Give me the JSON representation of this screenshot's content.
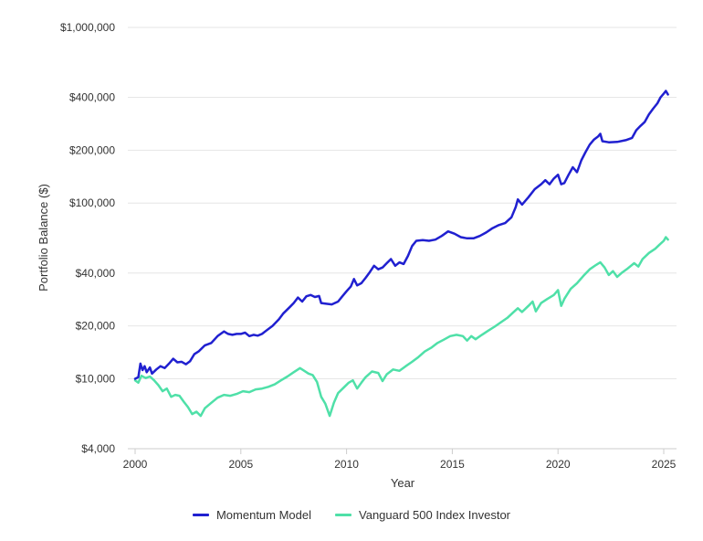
{
  "chart_data": {
    "type": "line",
    "xlabel": "Year",
    "ylabel": "Portfolio Balance ($)",
    "y_scale": "log",
    "ylim": [
      4000,
      1000000
    ],
    "xlim": [
      2000,
      2025.3
    ],
    "y_ticks": [
      {
        "value": 4000,
        "label": "$4,000"
      },
      {
        "value": 10000,
        "label": "$10,000"
      },
      {
        "value": 20000,
        "label": "$20,000"
      },
      {
        "value": 40000,
        "label": "$40,000"
      },
      {
        "value": 100000,
        "label": "$100,000"
      },
      {
        "value": 200000,
        "label": "$200,000"
      },
      {
        "value": 400000,
        "label": "$400,000"
      },
      {
        "value": 1000000,
        "label": "$1,000,000"
      }
    ],
    "x_ticks": [
      {
        "value": 2000,
        "label": "2000"
      },
      {
        "value": 2005,
        "label": "2005"
      },
      {
        "value": 2010,
        "label": "2010"
      },
      {
        "value": 2015,
        "label": "2015"
      },
      {
        "value": 2020,
        "label": "2020"
      },
      {
        "value": 2025,
        "label": "2025"
      }
    ],
    "grid": "horizontal",
    "legend_position": "bottom",
    "series": [
      {
        "name": "Momentum Model",
        "color": "#2020d0",
        "points": [
          [
            2000.0,
            10000
          ],
          [
            2000.15,
            10200
          ],
          [
            2000.25,
            12200
          ],
          [
            2000.35,
            11200
          ],
          [
            2000.45,
            11800
          ],
          [
            2000.55,
            10900
          ],
          [
            2000.7,
            11600
          ],
          [
            2000.8,
            10700
          ],
          [
            2001.0,
            11300
          ],
          [
            2001.2,
            11800
          ],
          [
            2001.4,
            11500
          ],
          [
            2001.6,
            12200
          ],
          [
            2001.8,
            13000
          ],
          [
            2002.0,
            12400
          ],
          [
            2002.2,
            12500
          ],
          [
            2002.4,
            12100
          ],
          [
            2002.6,
            12600
          ],
          [
            2002.8,
            13800
          ],
          [
            2003.0,
            14300
          ],
          [
            2003.3,
            15500
          ],
          [
            2003.6,
            16000
          ],
          [
            2003.9,
            17500
          ],
          [
            2004.2,
            18600
          ],
          [
            2004.4,
            18000
          ],
          [
            2004.6,
            17800
          ],
          [
            2004.8,
            18000
          ],
          [
            2005.0,
            18000
          ],
          [
            2005.2,
            18300
          ],
          [
            2005.4,
            17500
          ],
          [
            2005.6,
            17800
          ],
          [
            2005.8,
            17600
          ],
          [
            2006.0,
            18000
          ],
          [
            2006.2,
            18800
          ],
          [
            2006.5,
            20000
          ],
          [
            2006.8,
            21800
          ],
          [
            2007.0,
            23500
          ],
          [
            2007.3,
            25500
          ],
          [
            2007.5,
            27000
          ],
          [
            2007.7,
            29000
          ],
          [
            2007.9,
            27500
          ],
          [
            2008.1,
            29500
          ],
          [
            2008.3,
            30000
          ],
          [
            2008.5,
            29200
          ],
          [
            2008.7,
            29600
          ],
          [
            2008.8,
            27000
          ],
          [
            2009.0,
            26800
          ],
          [
            2009.3,
            26500
          ],
          [
            2009.6,
            27500
          ],
          [
            2009.8,
            29500
          ],
          [
            2010.0,
            31500
          ],
          [
            2010.2,
            33500
          ],
          [
            2010.35,
            37000
          ],
          [
            2010.5,
            34000
          ],
          [
            2010.7,
            35000
          ],
          [
            2010.9,
            37500
          ],
          [
            2011.1,
            40500
          ],
          [
            2011.3,
            44000
          ],
          [
            2011.5,
            42000
          ],
          [
            2011.7,
            43000
          ],
          [
            2011.9,
            45500
          ],
          [
            2012.1,
            48000
          ],
          [
            2012.3,
            44000
          ],
          [
            2012.5,
            46000
          ],
          [
            2012.7,
            45000
          ],
          [
            2012.9,
            50000
          ],
          [
            2013.1,
            57000
          ],
          [
            2013.3,
            61000
          ],
          [
            2013.6,
            61500
          ],
          [
            2013.9,
            61000
          ],
          [
            2014.2,
            62000
          ],
          [
            2014.5,
            65000
          ],
          [
            2014.8,
            69000
          ],
          [
            2015.1,
            67000
          ],
          [
            2015.4,
            64000
          ],
          [
            2015.7,
            63000
          ],
          [
            2016.0,
            63000
          ],
          [
            2016.3,
            65000
          ],
          [
            2016.6,
            68000
          ],
          [
            2016.9,
            72000
          ],
          [
            2017.2,
            75000
          ],
          [
            2017.5,
            77000
          ],
          [
            2017.8,
            83000
          ],
          [
            2018.0,
            95000
          ],
          [
            2018.1,
            105000
          ],
          [
            2018.3,
            98000
          ],
          [
            2018.6,
            108000
          ],
          [
            2018.9,
            120000
          ],
          [
            2019.2,
            128000
          ],
          [
            2019.4,
            135000
          ],
          [
            2019.6,
            128000
          ],
          [
            2019.8,
            138000
          ],
          [
            2020.0,
            145000
          ],
          [
            2020.15,
            128000
          ],
          [
            2020.3,
            130000
          ],
          [
            2020.5,
            145000
          ],
          [
            2020.7,
            160000
          ],
          [
            2020.9,
            150000
          ],
          [
            2021.1,
            175000
          ],
          [
            2021.3,
            195000
          ],
          [
            2021.5,
            215000
          ],
          [
            2021.7,
            230000
          ],
          [
            2021.9,
            240000
          ],
          [
            2022.0,
            248000
          ],
          [
            2022.1,
            225000
          ],
          [
            2022.4,
            222000
          ],
          [
            2022.8,
            223000
          ],
          [
            2023.2,
            228000
          ],
          [
            2023.5,
            235000
          ],
          [
            2023.7,
            260000
          ],
          [
            2023.9,
            275000
          ],
          [
            2024.1,
            290000
          ],
          [
            2024.3,
            320000
          ],
          [
            2024.5,
            345000
          ],
          [
            2024.7,
            370000
          ],
          [
            2024.85,
            400000
          ],
          [
            2025.0,
            420000
          ],
          [
            2025.1,
            435000
          ],
          [
            2025.2,
            415000
          ]
        ]
      },
      {
        "name": "Vanguard 500 Index Investor",
        "color": "#4fe0a8",
        "points": [
          [
            2000.0,
            9800
          ],
          [
            2000.15,
            9500
          ],
          [
            2000.3,
            10400
          ],
          [
            2000.5,
            10100
          ],
          [
            2000.7,
            10300
          ],
          [
            2000.9,
            9800
          ],
          [
            2001.1,
            9200
          ],
          [
            2001.3,
            8500
          ],
          [
            2001.5,
            8800
          ],
          [
            2001.7,
            7900
          ],
          [
            2001.9,
            8100
          ],
          [
            2002.1,
            8000
          ],
          [
            2002.3,
            7400
          ],
          [
            2002.5,
            6900
          ],
          [
            2002.7,
            6300
          ],
          [
            2002.9,
            6500
          ],
          [
            2003.1,
            6150
          ],
          [
            2003.3,
            6800
          ],
          [
            2003.6,
            7300
          ],
          [
            2003.9,
            7800
          ],
          [
            2004.2,
            8100
          ],
          [
            2004.5,
            8000
          ],
          [
            2004.8,
            8200
          ],
          [
            2005.1,
            8500
          ],
          [
            2005.4,
            8400
          ],
          [
            2005.7,
            8700
          ],
          [
            2006.0,
            8800
          ],
          [
            2006.3,
            9000
          ],
          [
            2006.6,
            9300
          ],
          [
            2006.9,
            9800
          ],
          [
            2007.2,
            10300
          ],
          [
            2007.5,
            10900
          ],
          [
            2007.8,
            11500
          ],
          [
            2008.0,
            11100
          ],
          [
            2008.2,
            10700
          ],
          [
            2008.4,
            10500
          ],
          [
            2008.6,
            9600
          ],
          [
            2008.8,
            7900
          ],
          [
            2009.0,
            7200
          ],
          [
            2009.2,
            6150
          ],
          [
            2009.4,
            7300
          ],
          [
            2009.6,
            8300
          ],
          [
            2009.9,
            9000
          ],
          [
            2010.1,
            9500
          ],
          [
            2010.3,
            9800
          ],
          [
            2010.5,
            8800
          ],
          [
            2010.7,
            9500
          ],
          [
            2010.9,
            10200
          ],
          [
            2011.2,
            11000
          ],
          [
            2011.5,
            10800
          ],
          [
            2011.7,
            9700
          ],
          [
            2011.9,
            10600
          ],
          [
            2012.2,
            11300
          ],
          [
            2012.5,
            11100
          ],
          [
            2012.8,
            11800
          ],
          [
            2013.1,
            12500
          ],
          [
            2013.4,
            13300
          ],
          [
            2013.7,
            14300
          ],
          [
            2014.0,
            15000
          ],
          [
            2014.3,
            16000
          ],
          [
            2014.6,
            16700
          ],
          [
            2014.9,
            17500
          ],
          [
            2015.2,
            17800
          ],
          [
            2015.5,
            17500
          ],
          [
            2015.7,
            16500
          ],
          [
            2015.9,
            17500
          ],
          [
            2016.1,
            16800
          ],
          [
            2016.4,
            17800
          ],
          [
            2016.7,
            18800
          ],
          [
            2017.0,
            19800
          ],
          [
            2017.3,
            21000
          ],
          [
            2017.6,
            22200
          ],
          [
            2017.9,
            24000
          ],
          [
            2018.1,
            25200
          ],
          [
            2018.3,
            24000
          ],
          [
            2018.6,
            26000
          ],
          [
            2018.8,
            27500
          ],
          [
            2018.95,
            24200
          ],
          [
            2019.2,
            27000
          ],
          [
            2019.5,
            28500
          ],
          [
            2019.8,
            30000
          ],
          [
            2020.0,
            32000
          ],
          [
            2020.15,
            26000
          ],
          [
            2020.3,
            28500
          ],
          [
            2020.6,
            32500
          ],
          [
            2020.9,
            35000
          ],
          [
            2021.2,
            38500
          ],
          [
            2021.5,
            42000
          ],
          [
            2021.8,
            44500
          ],
          [
            2022.0,
            46000
          ],
          [
            2022.2,
            43000
          ],
          [
            2022.4,
            39000
          ],
          [
            2022.6,
            41000
          ],
          [
            2022.8,
            38000
          ],
          [
            2023.0,
            40000
          ],
          [
            2023.3,
            42500
          ],
          [
            2023.6,
            45500
          ],
          [
            2023.8,
            43500
          ],
          [
            2024.0,
            48000
          ],
          [
            2024.3,
            52000
          ],
          [
            2024.6,
            55000
          ],
          [
            2024.8,
            58000
          ],
          [
            2025.0,
            61000
          ],
          [
            2025.1,
            64000
          ],
          [
            2025.2,
            62000
          ]
        ]
      }
    ]
  }
}
